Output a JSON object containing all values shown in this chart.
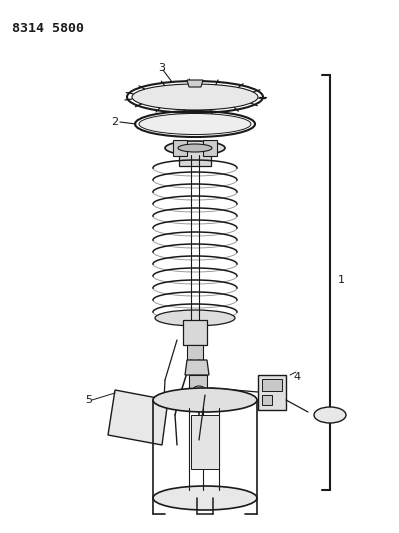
{
  "title_text": "8314 5800",
  "bg_color": "#ffffff",
  "line_color": "#1a1a1a",
  "label_color": "#1a1a1a",
  "figsize": [
    3.99,
    5.33
  ],
  "dpi": 100
}
